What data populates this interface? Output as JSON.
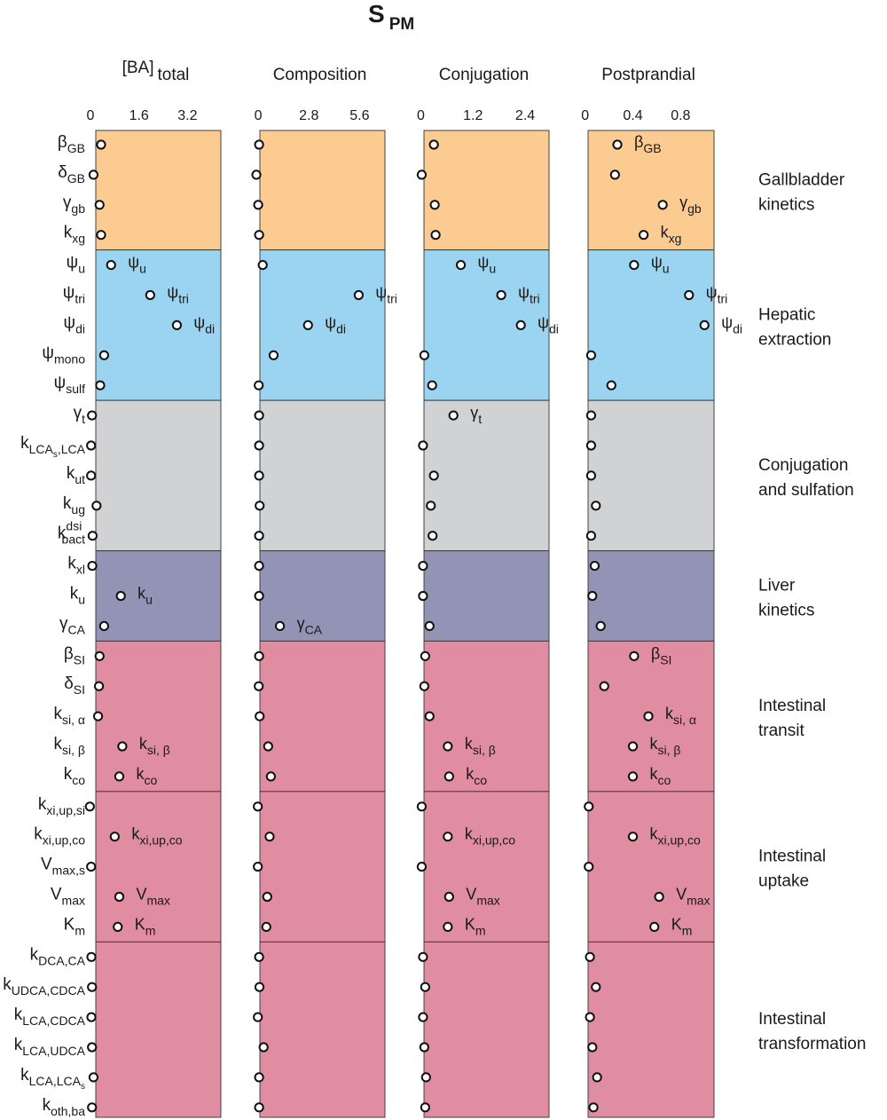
{
  "chart_data": {
    "type": "scatter",
    "title": "S",
    "title_sub": "PM",
    "panels": [
      {
        "name": "[BA]",
        "name_sub": "total",
        "ticks": [
          0,
          1.6,
          3.2
        ],
        "tick_labels": [
          "0",
          "1.6",
          "3.2"
        ],
        "xlim": [
          0,
          4.3
        ]
      },
      {
        "name": "Composition",
        "name_sub": "",
        "ticks": [
          0,
          2.8,
          5.6
        ],
        "tick_labels": [
          "0",
          "2.8",
          "5.6"
        ],
        "xlim": [
          -0.2,
          7.0
        ]
      },
      {
        "name": "Conjugation",
        "name_sub": "",
        "ticks": [
          0,
          1.2,
          2.4
        ],
        "tick_labels": [
          "0",
          "1.2",
          "2.4"
        ],
        "xlim": [
          -0.05,
          2.95
        ]
      },
      {
        "name": "Postprandial",
        "name_sub": "",
        "ticks": [
          0,
          0.4,
          0.8
        ],
        "tick_labels": [
          "0",
          "0.4",
          "0.8"
        ],
        "xlim": [
          -0.02,
          1.08
        ]
      }
    ],
    "groups": [
      {
        "lines": [
          "Gallbladder",
          "kinetics"
        ],
        "color": "#fbcb91",
        "rows": 4
      },
      {
        "lines": [
          "Hepatic",
          "extraction"
        ],
        "color": "#9ad4f1",
        "rows": 5
      },
      {
        "lines": [
          "Conjugation",
          "and sulfation"
        ],
        "color": "#d1d2d4",
        "rows": 5
      },
      {
        "lines": [
          "Liver",
          "kinetics"
        ],
        "color": "#9393b6",
        "rows": 3
      },
      {
        "lines": [
          "Intestinal",
          "transit"
        ],
        "color": "#e08ca1",
        "rows": 5
      },
      {
        "lines": [
          "Intestinal",
          "uptake"
        ],
        "color": "#e08ca1",
        "rows": 5
      },
      {
        "lines": [
          "Intestinal",
          "transformation"
        ],
        "color": "#e08ca1",
        "rows": 6
      }
    ],
    "parameters": [
      {
        "base": "β",
        "sub": "GB",
        "values": [
          0.35,
          0.05,
          0.3,
          0.27
        ],
        "annotate": [
          false,
          false,
          false,
          true
        ]
      },
      {
        "base": "δ",
        "sub": "GB",
        "values": [
          0.1,
          -0.1,
          0.02,
          0.25
        ],
        "annotate": [
          false,
          false,
          false,
          false
        ]
      },
      {
        "base": "γ",
        "sub": "gb",
        "values": [
          0.3,
          0.0,
          0.32,
          0.65
        ],
        "annotate": [
          false,
          false,
          false,
          true
        ]
      },
      {
        "base": "k",
        "sub": "xg",
        "values": [
          0.35,
          0.05,
          0.34,
          0.49
        ],
        "annotate": [
          false,
          false,
          false,
          true
        ]
      },
      {
        "base": "ψ",
        "sub": "u",
        "values": [
          0.68,
          0.25,
          0.92,
          0.41
        ],
        "annotate": [
          true,
          false,
          true,
          true
        ]
      },
      {
        "base": "ψ",
        "sub": "tri",
        "values": [
          1.97,
          5.55,
          1.85,
          0.87
        ],
        "annotate": [
          true,
          true,
          true,
          true
        ]
      },
      {
        "base": "ψ",
        "sub": "di",
        "values": [
          2.85,
          2.75,
          2.3,
          1.0
        ],
        "annotate": [
          true,
          true,
          true,
          true
        ]
      },
      {
        "base": "ψ",
        "sub": "mono",
        "values": [
          0.45,
          0.85,
          0.08,
          0.05
        ],
        "annotate": [
          false,
          false,
          false,
          false
        ]
      },
      {
        "base": "ψ",
        "sub": "sulf",
        "values": [
          0.32,
          0.03,
          0.26,
          0.22
        ],
        "annotate": [
          false,
          false,
          false,
          false
        ]
      },
      {
        "base": "γ",
        "sub": "t",
        "values": [
          0.05,
          0.05,
          0.75,
          0.05
        ],
        "annotate": [
          false,
          false,
          true,
          false
        ]
      },
      {
        "base": "k",
        "sub": "LCA",
        "sub2": "s",
        "sub3": ",LCA",
        "values": [
          0.02,
          0.05,
          0.05,
          0.05
        ],
        "annotate": [
          false,
          false,
          false,
          false
        ]
      },
      {
        "base": "k",
        "sub": "ut",
        "values": [
          0.02,
          0.05,
          0.3,
          0.05
        ],
        "annotate": [
          false,
          false,
          false,
          false
        ]
      },
      {
        "base": "k",
        "sub": "ug",
        "values": [
          0.2,
          0.08,
          0.23,
          0.09
        ],
        "annotate": [
          false,
          false,
          false,
          false
        ]
      },
      {
        "base": "k",
        "sub": "bact",
        "sup": "dsi",
        "values": [
          0.07,
          0.05,
          0.27,
          0.05
        ],
        "annotate": [
          false,
          false,
          false,
          false
        ]
      },
      {
        "base": "k",
        "sub": "xl",
        "values": [
          0.06,
          0.05,
          0.05,
          0.08
        ],
        "annotate": [
          false,
          false,
          false,
          false
        ]
      },
      {
        "base": "k",
        "sub": "u",
        "values": [
          1.0,
          0.05,
          0.05,
          0.06
        ],
        "annotate": [
          true,
          false,
          false,
          false
        ]
      },
      {
        "base": "γ",
        "sub": "CA",
        "values": [
          0.45,
          1.2,
          0.2,
          0.13
        ],
        "annotate": [
          false,
          true,
          false,
          false
        ]
      },
      {
        "base": "β",
        "sub": "SI",
        "values": [
          0.3,
          0.05,
          0.1,
          0.41
        ],
        "annotate": [
          false,
          false,
          false,
          true
        ]
      },
      {
        "base": "δ",
        "sub": "SI",
        "values": [
          0.28,
          0.03,
          0.08,
          0.16
        ],
        "annotate": [
          false,
          false,
          false,
          false
        ]
      },
      {
        "base": "k",
        "sub": "si, α",
        "values": [
          0.25,
          0.08,
          0.2,
          0.53
        ],
        "annotate": [
          false,
          false,
          false,
          true
        ]
      },
      {
        "base": "k",
        "sub": "si, β",
        "values": [
          1.05,
          0.55,
          0.62,
          0.4
        ],
        "annotate": [
          true,
          false,
          true,
          true
        ]
      },
      {
        "base": "k",
        "sub": "co",
        "values": [
          0.95,
          0.7,
          0.65,
          0.4
        ],
        "annotate": [
          true,
          false,
          true,
          true
        ]
      },
      {
        "base": "k",
        "sub": "xi,up,si",
        "values": [
          -0.02,
          -0.02,
          0.02,
          0.03
        ],
        "annotate": [
          false,
          false,
          false,
          false
        ]
      },
      {
        "base": "k",
        "sub": "xi,up,co",
        "values": [
          0.8,
          0.63,
          0.62,
          0.4
        ],
        "annotate": [
          true,
          false,
          true,
          true
        ]
      },
      {
        "base": "V",
        "sub": "max,s",
        "values": [
          0.02,
          -0.02,
          0.02,
          0.03
        ],
        "annotate": [
          false,
          false,
          false,
          false
        ]
      },
      {
        "base": "V",
        "sub": "max",
        "values": [
          0.95,
          0.5,
          0.65,
          0.62
        ],
        "annotate": [
          true,
          false,
          true,
          true
        ]
      },
      {
        "base": "K",
        "sub": "m",
        "values": [
          0.9,
          0.45,
          0.62,
          0.58
        ],
        "annotate": [
          true,
          false,
          true,
          true
        ]
      },
      {
        "base": "k",
        "sub": "DCA,CA",
        "values": [
          0.03,
          0.05,
          0.05,
          0.04
        ],
        "annotate": [
          false,
          false,
          false,
          false
        ]
      },
      {
        "base": "k",
        "sub": "UDCA,CDCA",
        "values": [
          0.05,
          0.07,
          0.1,
          0.09
        ],
        "annotate": [
          false,
          false,
          false,
          false
        ]
      },
      {
        "base": "k",
        "sub": "LCA,CDCA",
        "values": [
          0.03,
          -0.02,
          0.05,
          0.04
        ],
        "annotate": [
          false,
          false,
          false,
          false
        ]
      },
      {
        "base": "k",
        "sub": "LCA,UDCA",
        "values": [
          0.05,
          0.3,
          0.08,
          0.06
        ],
        "annotate": [
          false,
          false,
          false,
          false
        ]
      },
      {
        "base": "k",
        "sub": "LCA,LCA",
        "sub2": "s",
        "values": [
          0.1,
          0.05,
          0.12,
          0.1
        ],
        "annotate": [
          false,
          false,
          false,
          false
        ]
      },
      {
        "base": "k",
        "sub": "oth,ba",
        "values": [
          0.05,
          0.05,
          0.1,
          0.07
        ],
        "annotate": [
          false,
          false,
          false,
          false
        ]
      }
    ],
    "grid": false,
    "legend": "none"
  }
}
